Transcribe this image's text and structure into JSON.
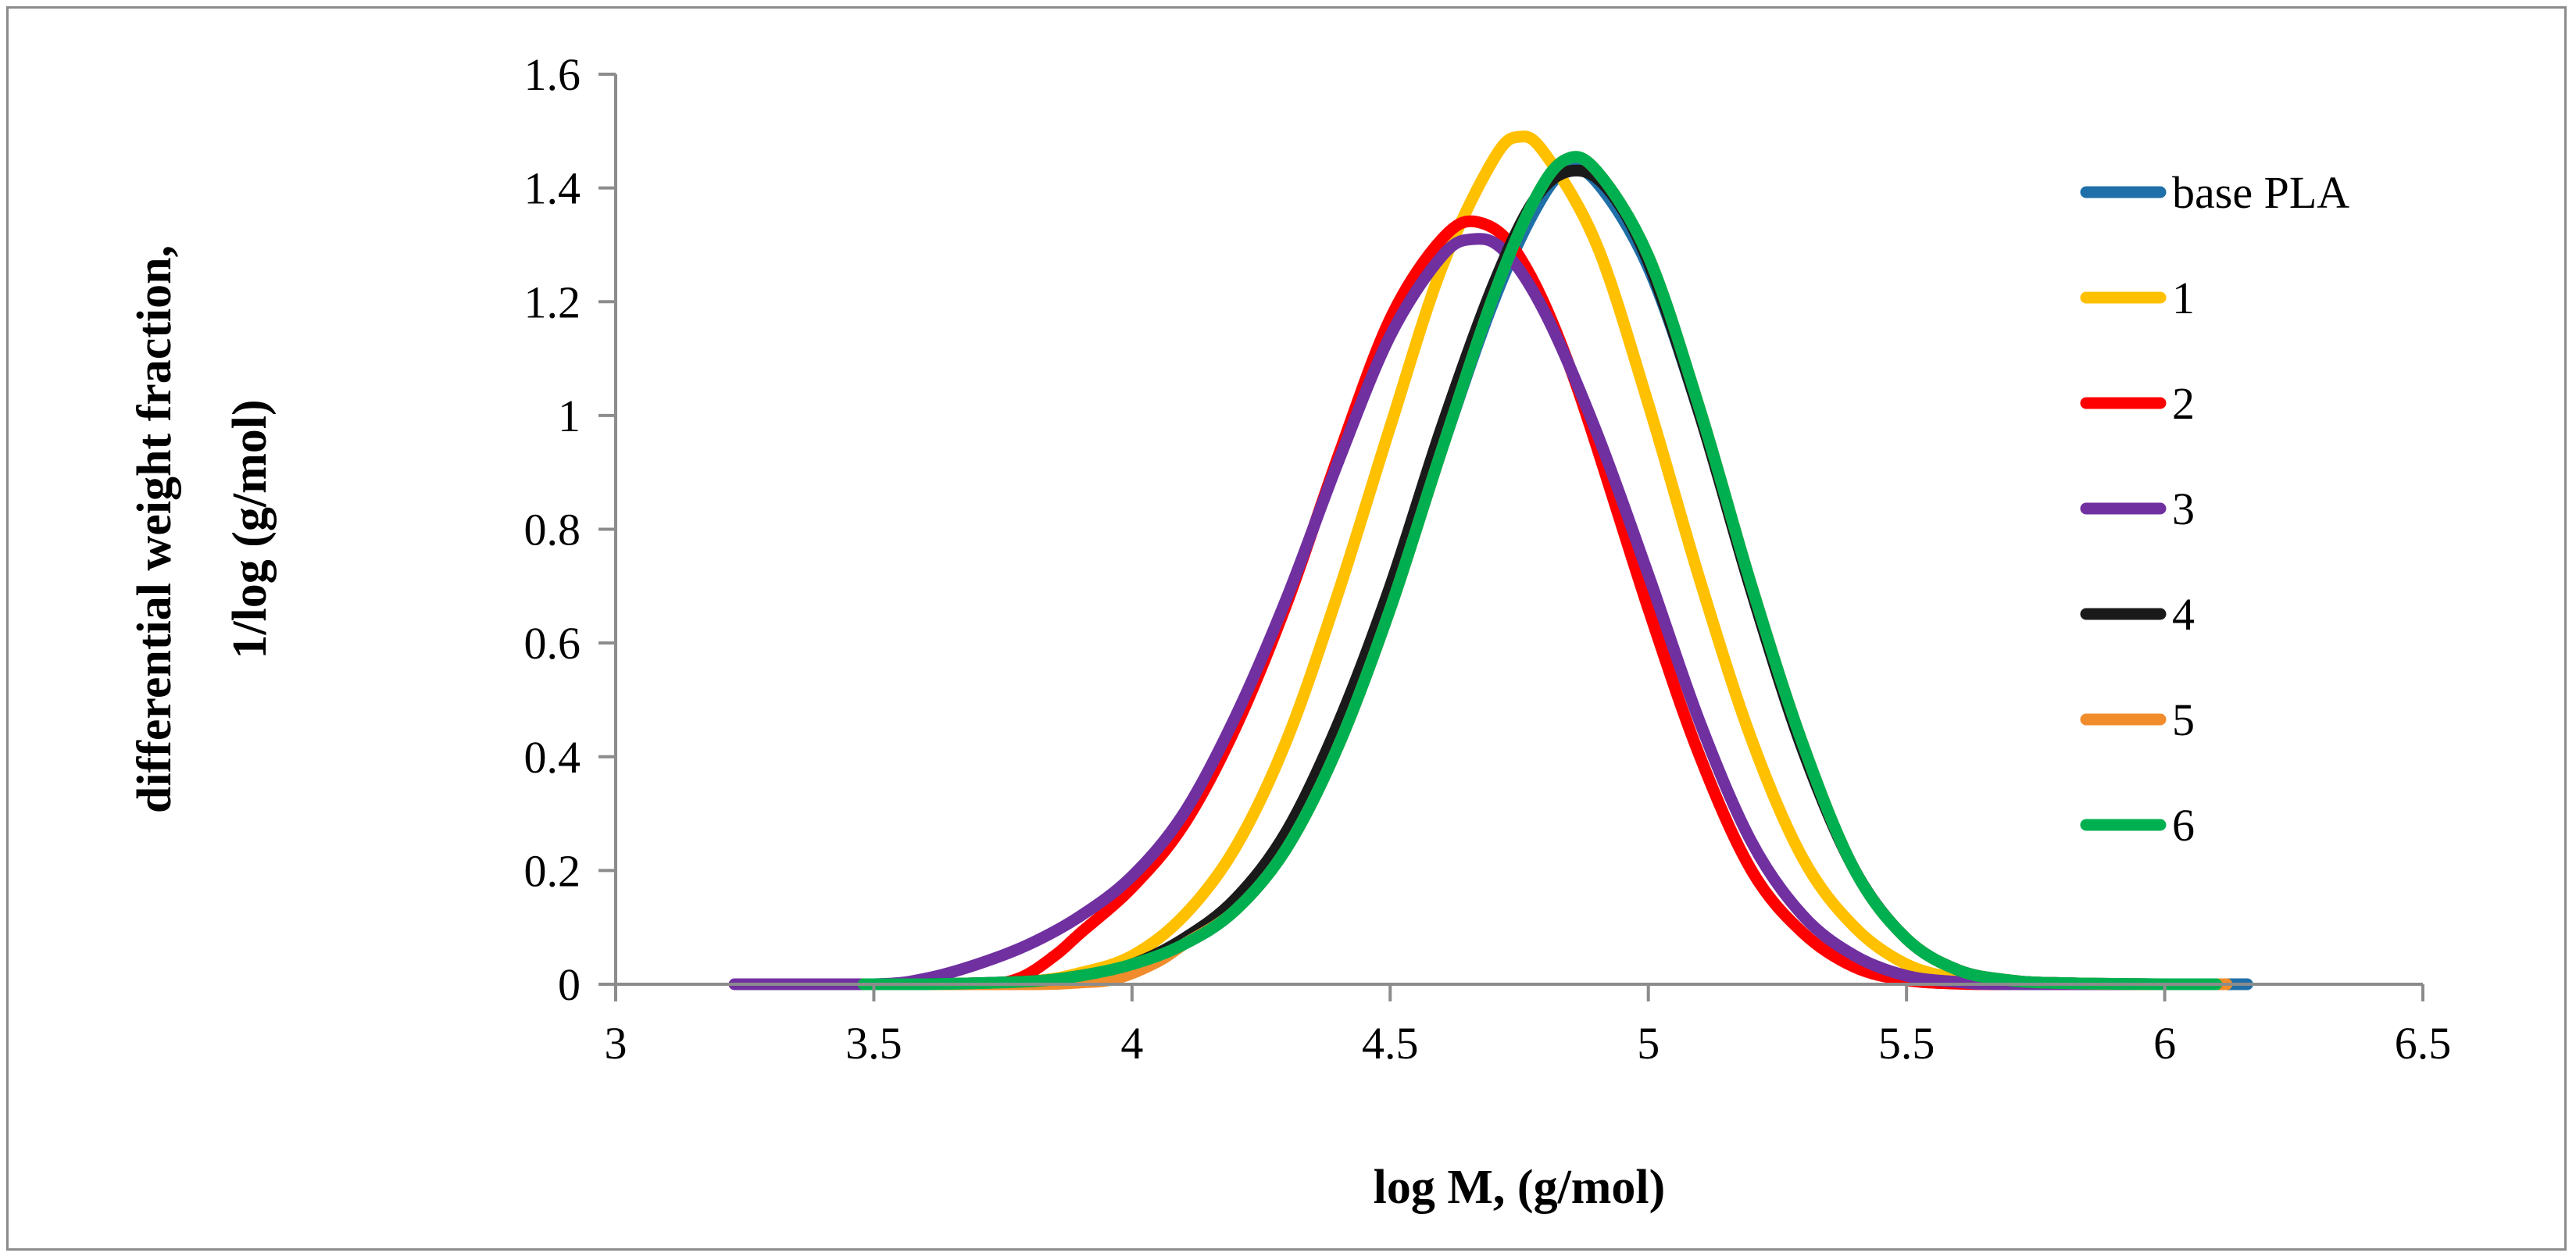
{
  "chart_data": {
    "type": "line",
    "title": "",
    "xlabel": "log M, (g/mol)",
    "ylabel_lines": [
      "differential weight fraction,",
      "1/log (g/mol)"
    ],
    "xlim": [
      3,
      6.5
    ],
    "ylim": [
      0,
      1.6
    ],
    "xticks": [
      "3",
      "3.5",
      "4",
      "4.5",
      "5",
      "5.5",
      "6",
      "6.5"
    ],
    "yticks": [
      "0",
      "0.2",
      "0.4",
      "0.6",
      "0.8",
      "1",
      "1.2",
      "1.4",
      "1.6"
    ],
    "grid": false,
    "legend_position": "right",
    "series": [
      {
        "name": "base PLA",
        "color": "#1F6FA8",
        "points": [
          [
            3.48,
            0
          ],
          [
            3.6,
            0
          ],
          [
            3.8,
            0.005
          ],
          [
            3.9,
            0.015
          ],
          [
            4,
            0.035
          ],
          [
            4.1,
            0.07
          ],
          [
            4.2,
            0.13
          ],
          [
            4.3,
            0.24
          ],
          [
            4.4,
            0.42
          ],
          [
            4.5,
            0.66
          ],
          [
            4.6,
            0.94
          ],
          [
            4.7,
            1.2
          ],
          [
            4.78,
            1.36
          ],
          [
            4.84,
            1.43
          ],
          [
            4.9,
            1.41
          ],
          [
            5.0,
            1.26
          ],
          [
            5.1,
            1.0
          ],
          [
            5.2,
            0.69
          ],
          [
            5.3,
            0.41
          ],
          [
            5.4,
            0.2
          ],
          [
            5.5,
            0.08
          ],
          [
            5.6,
            0.025
          ],
          [
            5.7,
            0.007
          ],
          [
            5.8,
            0.002
          ],
          [
            6.0,
            0
          ],
          [
            6.16,
            0
          ]
        ]
      },
      {
        "name": "1",
        "color": "#FFC000",
        "points": [
          [
            3.48,
            0
          ],
          [
            3.6,
            0
          ],
          [
            3.8,
            0.005
          ],
          [
            3.9,
            0.02
          ],
          [
            4,
            0.05
          ],
          [
            4.1,
            0.12
          ],
          [
            4.2,
            0.24
          ],
          [
            4.3,
            0.43
          ],
          [
            4.4,
            0.69
          ],
          [
            4.5,
            0.98
          ],
          [
            4.6,
            1.26
          ],
          [
            4.7,
            1.45
          ],
          [
            4.75,
            1.49
          ],
          [
            4.8,
            1.46
          ],
          [
            4.9,
            1.3
          ],
          [
            5.0,
            1.02
          ],
          [
            5.1,
            0.71
          ],
          [
            5.2,
            0.43
          ],
          [
            5.3,
            0.22
          ],
          [
            5.4,
            0.1
          ],
          [
            5.5,
            0.035
          ],
          [
            5.6,
            0.01
          ],
          [
            5.7,
            0.002
          ],
          [
            5.8,
            0
          ],
          [
            6.1,
            0
          ]
        ]
      },
      {
        "name": "2",
        "color": "#FF0000",
        "points": [
          [
            3.48,
            0
          ],
          [
            3.7,
            0
          ],
          [
            3.78,
            0.01
          ],
          [
            3.85,
            0.05
          ],
          [
            3.9,
            0.09
          ],
          [
            4,
            0.17
          ],
          [
            4.1,
            0.28
          ],
          [
            4.2,
            0.45
          ],
          [
            4.3,
            0.67
          ],
          [
            4.4,
            0.93
          ],
          [
            4.5,
            1.17
          ],
          [
            4.6,
            1.31
          ],
          [
            4.67,
            1.34
          ],
          [
            4.75,
            1.28
          ],
          [
            4.85,
            1.08
          ],
          [
            5.0,
            0.66
          ],
          [
            5.1,
            0.4
          ],
          [
            5.2,
            0.2
          ],
          [
            5.3,
            0.09
          ],
          [
            5.4,
            0.03
          ],
          [
            5.5,
            0.007
          ],
          [
            5.6,
            0.001
          ],
          [
            5.7,
            0
          ],
          [
            6.1,
            0
          ]
        ]
      },
      {
        "name": "3",
        "color": "#7030A0",
        "points": [
          [
            3.23,
            0
          ],
          [
            3.5,
            0
          ],
          [
            3.6,
            0.01
          ],
          [
            3.7,
            0.035
          ],
          [
            3.8,
            0.07
          ],
          [
            3.9,
            0.12
          ],
          [
            4,
            0.19
          ],
          [
            4.1,
            0.3
          ],
          [
            4.2,
            0.47
          ],
          [
            4.3,
            0.68
          ],
          [
            4.4,
            0.92
          ],
          [
            4.5,
            1.14
          ],
          [
            4.6,
            1.28
          ],
          [
            4.66,
            1.31
          ],
          [
            4.72,
            1.29
          ],
          [
            4.8,
            1.18
          ],
          [
            4.9,
            0.97
          ],
          [
            5.0,
            0.72
          ],
          [
            5.1,
            0.46
          ],
          [
            5.2,
            0.25
          ],
          [
            5.3,
            0.12
          ],
          [
            5.4,
            0.05
          ],
          [
            5.5,
            0.015
          ],
          [
            5.6,
            0.004
          ],
          [
            5.7,
            0
          ],
          [
            6.1,
            0
          ]
        ]
      },
      {
        "name": "4",
        "color": "#1A1A1A",
        "points": [
          [
            3.48,
            0
          ],
          [
            3.6,
            0
          ],
          [
            3.8,
            0.005
          ],
          [
            3.9,
            0.015
          ],
          [
            4,
            0.035
          ],
          [
            4.1,
            0.08
          ],
          [
            4.2,
            0.15
          ],
          [
            4.3,
            0.27
          ],
          [
            4.4,
            0.46
          ],
          [
            4.5,
            0.7
          ],
          [
            4.6,
            0.98
          ],
          [
            4.7,
            1.23
          ],
          [
            4.78,
            1.38
          ],
          [
            4.85,
            1.43
          ],
          [
            4.92,
            1.4
          ],
          [
            5.0,
            1.27
          ],
          [
            5.1,
            1.0
          ],
          [
            5.2,
            0.69
          ],
          [
            5.3,
            0.41
          ],
          [
            5.4,
            0.2
          ],
          [
            5.5,
            0.08
          ],
          [
            5.6,
            0.025
          ],
          [
            5.7,
            0.007
          ],
          [
            5.8,
            0.002
          ],
          [
            6.0,
            0
          ],
          [
            6.12,
            0
          ]
        ]
      },
      {
        "name": "5",
        "color": "#F08C2C",
        "points": [
          [
            3.48,
            0
          ],
          [
            3.8,
            0
          ],
          [
            3.9,
            0.003
          ],
          [
            3.97,
            0.01
          ],
          [
            4.05,
            0.04
          ],
          [
            4.1,
            0.07
          ],
          [
            4.2,
            0.13
          ],
          [
            4.3,
            0.24
          ],
          [
            4.4,
            0.42
          ],
          [
            4.5,
            0.66
          ],
          [
            4.6,
            0.94
          ],
          [
            4.7,
            1.21
          ],
          [
            4.78,
            1.38
          ],
          [
            4.84,
            1.45
          ],
          [
            4.9,
            1.43
          ],
          [
            5.0,
            1.28
          ],
          [
            5.1,
            1.01
          ],
          [
            5.2,
            0.7
          ],
          [
            5.3,
            0.42
          ],
          [
            5.4,
            0.2
          ],
          [
            5.5,
            0.08
          ],
          [
            5.6,
            0.025
          ],
          [
            5.7,
            0.007
          ],
          [
            5.8,
            0.002
          ],
          [
            6.0,
            0
          ],
          [
            6.12,
            0
          ]
        ]
      },
      {
        "name": "6",
        "color": "#00B050",
        "points": [
          [
            3.48,
            0
          ],
          [
            3.6,
            0
          ],
          [
            3.8,
            0.005
          ],
          [
            3.9,
            0.015
          ],
          [
            4,
            0.035
          ],
          [
            4.1,
            0.07
          ],
          [
            4.2,
            0.13
          ],
          [
            4.3,
            0.24
          ],
          [
            4.4,
            0.42
          ],
          [
            4.5,
            0.66
          ],
          [
            4.6,
            0.94
          ],
          [
            4.7,
            1.21
          ],
          [
            4.78,
            1.38
          ],
          [
            4.84,
            1.45
          ],
          [
            4.9,
            1.43
          ],
          [
            5.0,
            1.28
          ],
          [
            5.1,
            1.01
          ],
          [
            5.2,
            0.7
          ],
          [
            5.3,
            0.42
          ],
          [
            5.4,
            0.2
          ],
          [
            5.5,
            0.08
          ],
          [
            5.6,
            0.025
          ],
          [
            5.7,
            0.007
          ],
          [
            5.8,
            0.002
          ],
          [
            6.0,
            0
          ],
          [
            6.1,
            0
          ]
        ]
      }
    ]
  }
}
